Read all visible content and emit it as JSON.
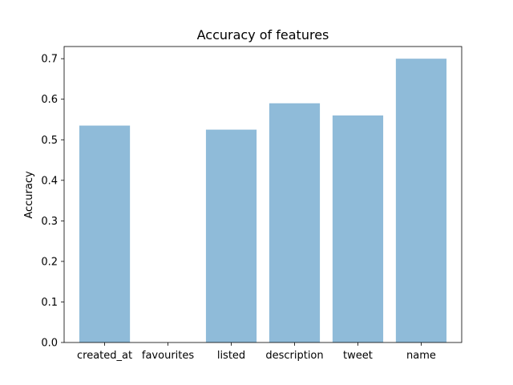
{
  "chart_data": {
    "type": "bar",
    "title": "Accuracy of features",
    "xlabel": "",
    "ylabel": "Accuracy",
    "categories": [
      "created_at",
      "favourites",
      "listed",
      "description",
      "tweet",
      "name"
    ],
    "values": [
      0.535,
      0.0,
      0.525,
      0.59,
      0.56,
      0.7
    ],
    "ylim": [
      0,
      0.73
    ],
    "yticks": [
      "0.0",
      "0.1",
      "0.2",
      "0.3",
      "0.4",
      "0.5",
      "0.6",
      "0.7"
    ],
    "grid": false,
    "bar_color": "#1f77b4",
    "bar_opacity": 0.5
  }
}
